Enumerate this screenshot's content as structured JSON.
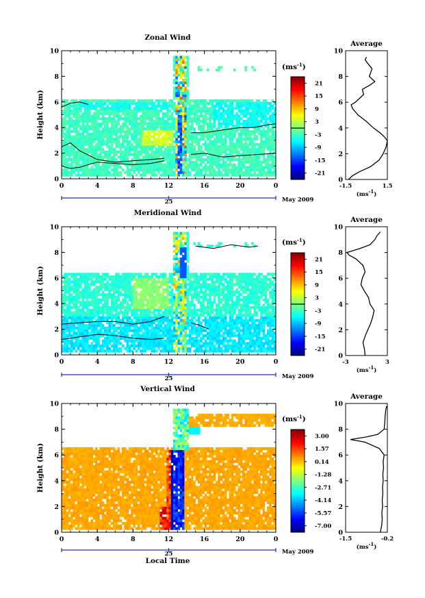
{
  "date_label": "May 2009",
  "local_time_label": "Local Time",
  "colorbar_unit_label": "(ms",
  "colorbar_unit_exp": "-1",
  "average_unit_label": "(ms",
  "average_unit_exp": "-1",
  "chart_data": [
    {
      "type": "heatmap",
      "title": "Zonal Wind",
      "ylabel": "Height (km)",
      "xlabel": "",
      "x_ticks": [
        "0",
        "4",
        "8",
        "12",
        "16",
        "20",
        "0"
      ],
      "y_ticks": [
        "0",
        "2",
        "4",
        "6",
        "8",
        "10"
      ],
      "xlim": [
        0,
        24
      ],
      "ylim": [
        0,
        10
      ],
      "day_label": "25",
      "colorbar": {
        "ticks": [
          "21",
          "15",
          "9",
          "3",
          "-3",
          "-9",
          "-15",
          "-21"
        ],
        "range": [
          -24,
          24
        ],
        "zero_line": true
      },
      "contours": [
        {
          "level": "zero",
          "x": [
            0,
            1,
            2,
            4,
            6,
            8,
            10,
            11.5
          ],
          "y": [
            2.5,
            2.8,
            2.2,
            1.5,
            1.3,
            1.4,
            1.5,
            1.6
          ]
        },
        {
          "level": "zero",
          "x": [
            0,
            1,
            2,
            3,
            4,
            6,
            8,
            10,
            11.5
          ],
          "y": [
            1.0,
            0.8,
            0.9,
            1.1,
            1.3,
            1.2,
            1.1,
            1.2,
            1.4
          ]
        },
        {
          "level": "zero",
          "x": [
            14.5,
            16,
            18,
            20,
            21.5,
            23,
            24
          ],
          "y": [
            3.6,
            3.6,
            3.8,
            4.0,
            4.0,
            4.2,
            4.3
          ]
        },
        {
          "level": "zero",
          "x": [
            14.5,
            16,
            18,
            20,
            22,
            24
          ],
          "y": [
            1.9,
            2.0,
            1.7,
            1.8,
            1.9,
            2.0
          ]
        },
        {
          "level": "zero",
          "x": [
            0,
            1,
            2,
            3
          ],
          "y": [
            5.6,
            5.9,
            6.0,
            5.8
          ]
        }
      ],
      "average": {
        "title": "Average",
        "xlim": [
          -1.5,
          1.5
        ],
        "x_ticks": [
          "-1.5",
          "1.5"
        ],
        "y_ticks": [
          "0",
          "2",
          "4",
          "6",
          "8",
          "10"
        ],
        "height": [
          0,
          0.3,
          0.6,
          1,
          1.5,
          2,
          2.5,
          3,
          3.3,
          3.6,
          4,
          4.5,
          5,
          5.5,
          5.8,
          6,
          6.3,
          6.6,
          7,
          7.3,
          7.6,
          8,
          8.3,
          8.6,
          9,
          9.3,
          9.5
        ],
        "value": [
          -1.3,
          -1.0,
          -0.5,
          0.3,
          0.9,
          1.2,
          1.4,
          1.5,
          1.3,
          1.0,
          0.5,
          0.0,
          -0.6,
          -1.0,
          -1.1,
          -0.8,
          -0.5,
          -0.2,
          -0.3,
          0.2,
          0.6,
          0.2,
          0.3,
          0.4,
          0.1,
          -0.1,
          0.0
        ]
      }
    },
    {
      "type": "heatmap",
      "title": "Meridional Wind",
      "ylabel": "Height (km)",
      "xlabel": "",
      "x_ticks": [
        "0",
        "4",
        "8",
        "12",
        "16",
        "20",
        "0"
      ],
      "y_ticks": [
        "0",
        "2",
        "4",
        "6",
        "8",
        "10"
      ],
      "xlim": [
        0,
        24
      ],
      "ylim": [
        0,
        10
      ],
      "day_label": "25",
      "colorbar": {
        "ticks": [
          "21",
          "15",
          "9",
          "3",
          "-3",
          "-9",
          "-15",
          "-21"
        ],
        "range": [
          -24,
          24
        ],
        "zero_line": true
      },
      "contours": [
        {
          "level": "zero",
          "x": [
            0,
            2,
            4,
            6,
            8,
            10,
            11.5
          ],
          "y": [
            2.4,
            2.5,
            2.6,
            2.6,
            2.4,
            2.6,
            3.0
          ]
        },
        {
          "level": "zero",
          "x": [
            0,
            2,
            4,
            6,
            8,
            10,
            11.5
          ],
          "y": [
            1.2,
            1.4,
            1.6,
            1.5,
            1.3,
            1.2,
            1.3
          ]
        },
        {
          "level": "zero",
          "x": [
            14.5,
            15.5,
            16.5
          ],
          "y": [
            2.5,
            2.3,
            2.0
          ]
        },
        {
          "level": "zero",
          "x": [
            15,
            17,
            19,
            21,
            22
          ],
          "y": [
            8.5,
            8.3,
            8.6,
            8.4,
            8.5
          ]
        }
      ],
      "average": {
        "title": "Average",
        "xlim": [
          -3,
          3
        ],
        "x_ticks": [
          "-3",
          "3"
        ],
        "y_ticks": [
          "0",
          "2",
          "4",
          "6",
          "8",
          "10"
        ],
        "height": [
          0,
          0.5,
          1,
          1.5,
          2,
          2.5,
          3,
          3.5,
          4,
          4.5,
          5,
          5.5,
          6,
          6.5,
          7,
          7.5,
          7.8,
          8,
          8.3,
          8.6,
          9,
          9.3,
          9.6
        ],
        "value": [
          -0.2,
          -0.3,
          -0.5,
          -0.2,
          0.2,
          0.6,
          0.9,
          1.1,
          0.5,
          0.3,
          -0.3,
          -0.8,
          -0.6,
          -0.2,
          -0.5,
          -1.5,
          -2.5,
          -2.8,
          -1.0,
          0.5,
          1.2,
          1.5,
          2.0
        ]
      }
    },
    {
      "type": "heatmap",
      "title": "Vertical Wind",
      "ylabel": "Height (km)",
      "xlabel": "Local Time",
      "x_ticks": [
        "0",
        "4",
        "8",
        "12",
        "16",
        "20",
        "0"
      ],
      "y_ticks": [
        "0",
        "2",
        "4",
        "6",
        "8",
        "10"
      ],
      "xlim": [
        0,
        24
      ],
      "ylim": [
        0,
        10
      ],
      "day_label": "25",
      "colorbar": {
        "ticks": [
          "3.00",
          "1.57",
          "0.14",
          "-1.28",
          "-2.71",
          "-4.14",
          "-5.57",
          "-7.00"
        ],
        "range": [
          -7.7,
          3.7
        ],
        "zero_line": false
      },
      "contours": [],
      "average": {
        "title": "Average",
        "xlim": [
          -1.5,
          -0.2
        ],
        "x_ticks": [
          "-1.5",
          "-0.2"
        ],
        "y_ticks": [
          "0",
          "2",
          "4",
          "6",
          "8",
          "10"
        ],
        "height": [
          0,
          0.5,
          1,
          1.5,
          2,
          2.5,
          3,
          3.5,
          4,
          4.5,
          5,
          5.5,
          6,
          6.5,
          7,
          7.2,
          7.4,
          7.6,
          8,
          8.5,
          9,
          9.5,
          9.8
        ],
        "value": [
          -0.42,
          -0.38,
          -0.36,
          -0.37,
          -0.35,
          -0.36,
          -0.34,
          -0.35,
          -0.33,
          -0.34,
          -0.32,
          -0.33,
          -0.3,
          -0.45,
          -0.9,
          -1.35,
          -0.85,
          -0.5,
          -0.3,
          -0.28,
          -0.27,
          -0.25,
          -0.22
        ]
      }
    }
  ]
}
